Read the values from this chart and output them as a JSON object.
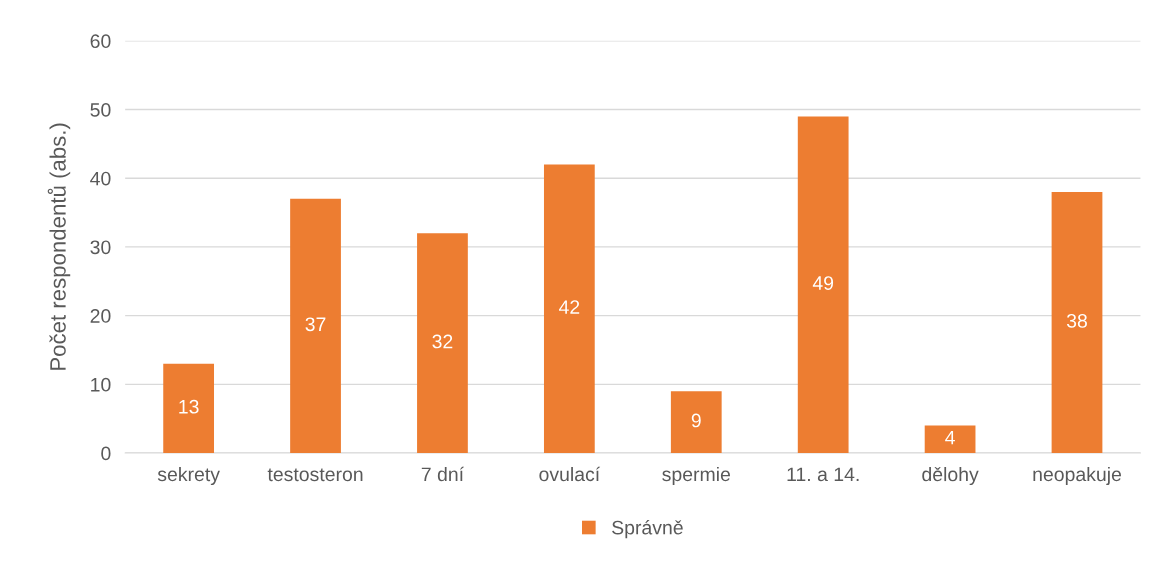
{
  "chart_data": {
    "type": "bar",
    "ylabel": "Počet respondentů (abs.)",
    "categories": [
      "sekrety",
      "testosteron",
      "7 dní",
      "ovulací",
      "spermie",
      "11. a 14.",
      "dělohy",
      "neopakuje"
    ],
    "series": [
      {
        "name": "Správně",
        "color": "#ed7d31",
        "values": [
          13,
          37,
          32,
          42,
          9,
          49,
          4,
          38
        ]
      }
    ],
    "ylim": [
      0,
      60
    ],
    "yticks": [
      0,
      10,
      20,
      30,
      40,
      50,
      60
    ],
    "grid": "y",
    "legend": "bottom",
    "data_labels": true
  }
}
